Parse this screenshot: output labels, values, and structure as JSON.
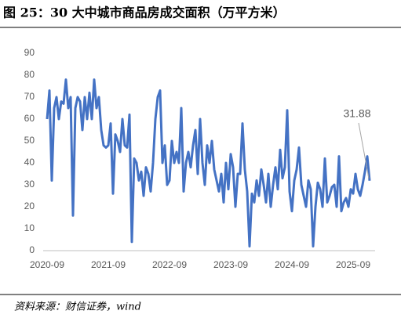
{
  "chart_data": {
    "type": "line",
    "title": "图 25：30 大中城市商品房成交面积（万平方米）",
    "source": "资料来源：财信证券，wind",
    "categories": [
      "2020-09",
      null,
      null,
      null,
      null,
      null,
      null,
      null,
      null,
      null,
      null,
      null,
      null,
      null,
      null,
      null,
      null,
      null,
      null,
      null,
      null,
      null,
      null,
      null,
      null,
      null,
      "2021-09",
      null,
      null,
      null,
      null,
      null,
      null,
      null,
      null,
      null,
      null,
      null,
      null,
      null,
      null,
      null,
      null,
      null,
      null,
      null,
      null,
      null,
      null,
      null,
      null,
      null,
      "2022-09",
      null,
      null,
      null,
      null,
      null,
      null,
      null,
      null,
      null,
      null,
      null,
      null,
      null,
      null,
      null,
      null,
      null,
      null,
      null,
      null,
      null,
      null,
      null,
      null,
      null,
      "2023-09",
      null,
      null,
      null,
      null,
      null,
      null,
      null,
      null,
      null,
      null,
      null,
      null,
      null,
      null,
      null,
      null,
      null,
      null,
      null,
      null,
      null,
      null,
      null,
      null,
      null,
      "2024-09",
      null,
      null,
      null,
      null,
      null,
      null,
      null,
      null,
      null,
      null,
      null,
      null,
      null,
      null,
      null,
      null,
      null,
      null,
      null,
      null,
      null,
      null,
      null,
      null,
      null,
      "2025-09",
      null,
      null,
      null,
      null,
      null,
      null,
      null
    ],
    "values": [
      60,
      73,
      32,
      65,
      70,
      60,
      68,
      67,
      78,
      65,
      70,
      16,
      65,
      70,
      68,
      55,
      70,
      60,
      72,
      60,
      78,
      65,
      70,
      55,
      48,
      47,
      48,
      58,
      26,
      53,
      50,
      45,
      60,
      48,
      47,
      62,
      4,
      42,
      40,
      32,
      36,
      25,
      38,
      35,
      27,
      40,
      60,
      70,
      73,
      40,
      48,
      30,
      32,
      50,
      40,
      45,
      40,
      65,
      27,
      40,
      45,
      38,
      48,
      55,
      35,
      60,
      40,
      30,
      48,
      40,
      50,
      37,
      32,
      27,
      35,
      22,
      40,
      28,
      44,
      38,
      20,
      35,
      35,
      58,
      37,
      27,
      2,
      26,
      22,
      32,
      25,
      37,
      30,
      22,
      35,
      20,
      30,
      38,
      28,
      46,
      33,
      38,
      64,
      27,
      18,
      32,
      37,
      47,
      30,
      25,
      20,
      32,
      28,
      2,
      20,
      31,
      28,
      20,
      42,
      22,
      25,
      29,
      30,
      20,
      43,
      18,
      22,
      24,
      20,
      28,
      26,
      35,
      28,
      25,
      30,
      36,
      43,
      31.88
    ],
    "color": "#4472c4",
    "ylim": [
      0,
      90
    ],
    "yticks": [
      0,
      10,
      20,
      30,
      40,
      50,
      60,
      70,
      80,
      90
    ]
  }
}
